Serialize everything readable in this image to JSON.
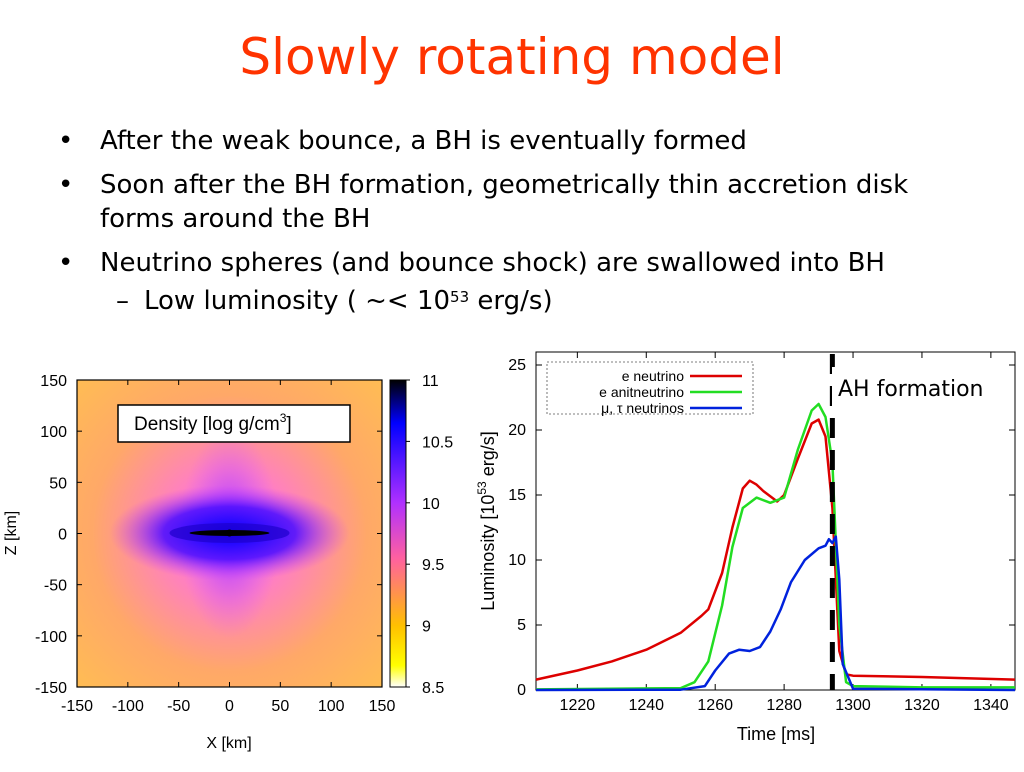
{
  "slide": {
    "title": "Slowly rotating model",
    "bullets": [
      "After the weak bounce, a BH is eventually formed",
      "Soon after the BH formation, geometrically thin accretion disk forms around the BH",
      "Neutrino spheres (and bounce shock) are swallowed into BH"
    ],
    "sub_bullet": {
      "prefix": "Low luminosity ( ~< 10",
      "exponent": "53",
      "suffix": " erg/s)"
    }
  },
  "chart_data": [
    {
      "type": "heatmap",
      "annotation": "Density [log g/cm3]",
      "annotation_parts": {
        "text": "Density [log g/cm",
        "sup": "3",
        "close": "]"
      },
      "xlabel": "X [km]",
      "ylabel": "Z [km]",
      "xlim": [
        -150,
        150
      ],
      "ylim": [
        -150,
        150
      ],
      "xticks": [
        -150,
        -100,
        -50,
        0,
        50,
        100,
        150
      ],
      "yticks": [
        150,
        100,
        50,
        0,
        -50,
        -100,
        -150
      ],
      "colorbar": {
        "range": [
          8.5,
          11
        ],
        "ticks": [
          "11",
          "10.5",
          "10",
          "9.5",
          "9",
          "8.5"
        ]
      },
      "colors": {
        "low": "#fff200",
        "mid_low": "#ffb040",
        "mid": "#e040ff",
        "high": "#0000ff",
        "top": "#000000"
      }
    },
    {
      "type": "line",
      "xlabel": "Time [ms]",
      "ylabel": "Luminosity [10^53 erg/s]",
      "ylabel_parts": {
        "pre": "Luminosity [10",
        "sup": "53",
        "post": " erg/s]"
      },
      "xlim": [
        1208,
        1347
      ],
      "ylim": [
        0,
        26
      ],
      "xticks": [
        1220,
        1240,
        1260,
        1280,
        1300,
        1320,
        1340
      ],
      "yticks": [
        0,
        5,
        10,
        15,
        20,
        25
      ],
      "annotation": "AH formation",
      "ah_formation_time": 1294,
      "series": [
        {
          "name": "e neutrino",
          "color": "#dd0000",
          "x": [
            1208,
            1220,
            1230,
            1240,
            1250,
            1256,
            1258,
            1262,
            1265,
            1268,
            1270,
            1272,
            1274,
            1278,
            1280,
            1284,
            1288,
            1290,
            1292,
            1294,
            1296,
            1298,
            1300,
            1320,
            1347
          ],
          "y": [
            0.8,
            1.5,
            2.2,
            3.1,
            4.4,
            5.7,
            6.2,
            9.0,
            12.5,
            15.5,
            16.1,
            15.8,
            15.3,
            14.5,
            15.0,
            17.8,
            20.5,
            20.8,
            19.5,
            14.0,
            3.0,
            1.2,
            1.1,
            1.0,
            0.8
          ]
        },
        {
          "name": "e anitneutrino",
          "color": "#22dd22",
          "x": [
            1208,
            1250,
            1254,
            1258,
            1262,
            1265,
            1268,
            1272,
            1276,
            1280,
            1284,
            1288,
            1290,
            1292,
            1294,
            1296,
            1298,
            1300,
            1320,
            1347
          ],
          "y": [
            0.05,
            0.15,
            0.6,
            2.2,
            6.5,
            11.0,
            14.0,
            14.8,
            14.4,
            14.8,
            18.5,
            21.5,
            22.0,
            21.0,
            17.5,
            5.0,
            0.6,
            0.3,
            0.2,
            0.2
          ]
        },
        {
          "name": "μ, τ neutrinos",
          "color": "#0022dd",
          "x": [
            1208,
            1250,
            1257,
            1260,
            1264,
            1267,
            1270,
            1273,
            1276,
            1279,
            1282,
            1286,
            1290,
            1292,
            1293,
            1294,
            1295,
            1296,
            1297,
            1300,
            1347
          ],
          "y": [
            0,
            0.02,
            0.3,
            1.5,
            2.8,
            3.1,
            3.0,
            3.3,
            4.5,
            6.2,
            8.3,
            10.0,
            10.9,
            11.1,
            11.6,
            11.3,
            11.8,
            8.5,
            2.0,
            0.1,
            0
          ]
        }
      ]
    }
  ]
}
